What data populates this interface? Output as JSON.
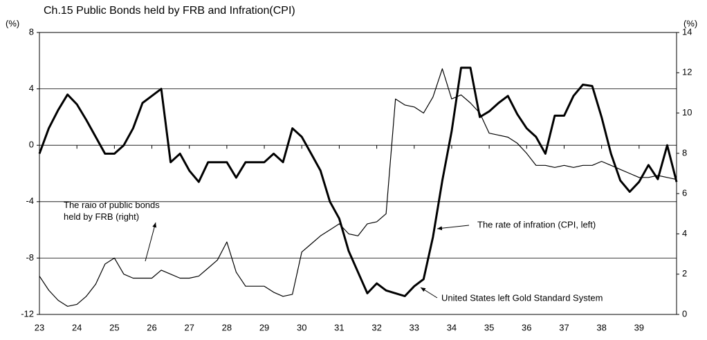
{
  "chart_data": {
    "type": "line",
    "title": "Ch.15 Public Bonds held by FRB and Infration(CPI)",
    "ylabel": "(%)",
    "y2label": "(%)",
    "xlim": [
      23,
      40
    ],
    "xticks": [
      23,
      24,
      25,
      26,
      27,
      28,
      29,
      30,
      31,
      32,
      33,
      34,
      35,
      36,
      37,
      38,
      39
    ],
    "ylim": [
      -12,
      8
    ],
    "yticks": [
      -12,
      -8,
      -4,
      0,
      4,
      8
    ],
    "y2lim": [
      0,
      14
    ],
    "y2ticks": [
      0,
      2,
      4,
      6,
      8,
      10,
      12,
      14
    ],
    "grid": true,
    "x": [
      23,
      23.25,
      23.5,
      23.75,
      24,
      24.25,
      24.5,
      24.75,
      25,
      25.25,
      25.5,
      25.75,
      26,
      26.25,
      26.5,
      26.75,
      27,
      27.25,
      27.5,
      27.75,
      28,
      28.25,
      28.5,
      28.75,
      29,
      29.25,
      29.5,
      29.75,
      30,
      30.25,
      30.5,
      30.75,
      31,
      31.25,
      31.5,
      31.75,
      32,
      32.25,
      32.5,
      32.75,
      33,
      33.25,
      33.5,
      33.75,
      34,
      34.25,
      34.5,
      34.75,
      35,
      35.25,
      35.5,
      35.75,
      36,
      36.25,
      36.5,
      36.75,
      37,
      37.25,
      37.5,
      37.75,
      38,
      38.25,
      38.5,
      38.75,
      39,
      39.25,
      39.5,
      39.75,
      40
    ],
    "series": [
      {
        "name": "The rate of infration (CPI, left)",
        "color": "#000000",
        "width": 3,
        "axis": "y",
        "values": [
          -0.6,
          1.2,
          2.5,
          3.6,
          2.9,
          1.8,
          0.6,
          -0.6,
          -0.6,
          0,
          1.2,
          3.0,
          3.5,
          4.0,
          -1.2,
          -0.6,
          -1.8,
          -2.6,
          -1.2,
          -1.2,
          -1.2,
          -2.3,
          -1.2,
          -1.2,
          -1.2,
          -0.6,
          -1.2,
          1.2,
          0.6,
          -0.6,
          -1.8,
          -4.0,
          -5.2,
          -7.5,
          -9.0,
          -10.5,
          -9.8,
          -10.3,
          -10.5,
          -10.7,
          -10.0,
          -9.5,
          -6.5,
          -2.5,
          1.0,
          5.5,
          5.5,
          2.0,
          2.4,
          3.0,
          3.5,
          2.2,
          1.2,
          0.6,
          -0.6,
          2.1,
          2.1,
          3.5,
          4.3,
          4.2,
          2.0,
          -0.6,
          -2.5,
          -3.3,
          -2.6,
          -1.4,
          -2.4,
          0,
          -2.6
        ]
      },
      {
        "name": "The raio of public bonds held by FRB (right)",
        "color": "#000000",
        "width": 1.2,
        "axis": "y2",
        "values": [
          1.9,
          1.2,
          0.7,
          0.4,
          0.5,
          0.9,
          1.5,
          2.5,
          2.8,
          2.0,
          1.8,
          1.8,
          1.8,
          2.2,
          2.0,
          1.8,
          1.8,
          1.9,
          2.3,
          2.7,
          3.6,
          2.1,
          1.4,
          1.4,
          1.4,
          1.1,
          0.9,
          1.0,
          3.1,
          3.5,
          3.9,
          4.2,
          4.5,
          4.0,
          3.9,
          4.5,
          4.6,
          5.0,
          10.7,
          10.4,
          10.3,
          10.0,
          10.8,
          12.2,
          10.7,
          10.9,
          10.5,
          10.0,
          9.0,
          8.9,
          8.8,
          8.5,
          8.0,
          7.4,
          7.4,
          7.3,
          7.4,
          7.3,
          7.4,
          7.4,
          7.6,
          7.4,
          7.2,
          7.0,
          6.8,
          6.8,
          6.9,
          6.8,
          6.7
        ]
      }
    ],
    "annotations": [
      "The raio of public bonds\nheld by FRB (right)",
      "The rate of infration (CPI, left)",
      "United States left Gold Standard System"
    ]
  }
}
